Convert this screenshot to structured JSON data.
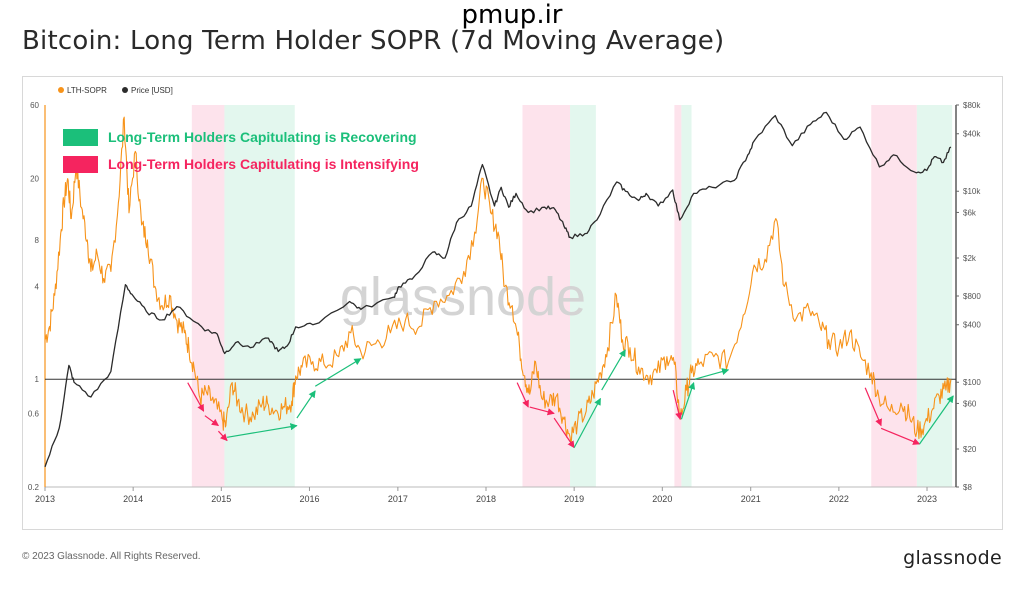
{
  "page": {
    "top_watermark": "pmup.ir",
    "title": "Bitcoin: Long Term Holder SOPR (7d Moving Average)",
    "copyright": "© 2023 Glassnode. All Rights Reserved.",
    "brand_logo": "glassnode",
    "chart_watermark": "glassnode"
  },
  "chart_data": {
    "type": "line",
    "title": "Bitcoin: Long Term Holder SOPR (7d Moving Average)",
    "legend_position": "top-left",
    "grid": false,
    "x_range": [
      "2013-01-01",
      "2023-05-01"
    ],
    "x_ticks": [
      "2013",
      "2014",
      "2015",
      "2016",
      "2017",
      "2018",
      "2019",
      "2020",
      "2021",
      "2022",
      "2023"
    ],
    "y_left": {
      "scale": "log",
      "range": [
        0.2,
        60
      ],
      "ticks": [
        0.2,
        0.6,
        1,
        4,
        8,
        20,
        60
      ]
    },
    "y_right": {
      "scale": "log",
      "range": [
        8,
        80000
      ],
      "ticks": [
        "$8",
        "$20",
        "$60",
        "$100",
        "$400",
        "$800",
        "$2k",
        "$6k",
        "$10k",
        "$40k",
        "$80k"
      ]
    },
    "reference_line": {
      "axis": "left",
      "value": 1,
      "color": "#333333"
    },
    "colors": {
      "sopr": "#f7931a",
      "price": "#2b2b2b",
      "recovering": "#1bbf7a",
      "intensifying": "#f5245f"
    },
    "legend_entries": [
      "LTH-SOPR",
      "Price [USD]"
    ],
    "series": [
      {
        "name": "LTH-SOPR",
        "axis": "left",
        "points": [
          [
            "2013-01-01",
            1.8
          ],
          [
            "2013-01-20",
            2.2
          ],
          [
            "2013-02-10",
            3.5
          ],
          [
            "2013-03-05",
            8
          ],
          [
            "2013-03-20",
            14
          ],
          [
            "2013-04-05",
            20
          ],
          [
            "2013-04-20",
            11
          ],
          [
            "2013-05-10",
            25
          ],
          [
            "2013-06-01",
            13
          ],
          [
            "2013-06-25",
            8
          ],
          [
            "2013-07-10",
            5
          ],
          [
            "2013-08-05",
            6.5
          ],
          [
            "2013-09-01",
            4.5
          ],
          [
            "2013-10-01",
            5
          ],
          [
            "2013-11-01",
            14
          ],
          [
            "2013-11-25",
            50
          ],
          [
            "2013-12-15",
            12
          ],
          [
            "2014-01-10",
            30
          ],
          [
            "2014-02-05",
            10
          ],
          [
            "2014-03-01",
            8
          ],
          [
            "2014-04-01",
            4
          ],
          [
            "2014-05-01",
            3
          ],
          [
            "2014-06-01",
            3.5
          ],
          [
            "2014-07-01",
            2.4
          ],
          [
            "2014-08-01",
            2.0
          ],
          [
            "2014-08-20",
            1.6
          ],
          [
            "2014-09-10",
            1.2
          ],
          [
            "2014-10-05",
            0.75
          ],
          [
            "2014-11-01",
            0.82
          ],
          [
            "2014-12-01",
            0.7
          ],
          [
            "2015-01-05",
            0.55
          ],
          [
            "2015-01-20",
            0.5
          ],
          [
            "2015-02-15",
            0.95
          ],
          [
            "2015-03-10",
            0.72
          ],
          [
            "2015-04-10",
            0.6
          ],
          [
            "2015-05-15",
            0.58
          ],
          [
            "2015-06-20",
            0.7
          ],
          [
            "2015-07-15",
            0.68
          ],
          [
            "2015-08-20",
            0.62
          ],
          [
            "2015-09-20",
            0.66
          ],
          [
            "2015-10-20",
            0.72
          ],
          [
            "2015-11-05",
            1.05
          ],
          [
            "2015-12-01",
            1.2
          ],
          [
            "2016-01-15",
            1.3
          ],
          [
            "2016-03-01",
            1.25
          ],
          [
            "2016-05-01",
            1.4
          ],
          [
            "2016-06-20",
            2.0
          ],
          [
            "2016-08-01",
            1.5
          ],
          [
            "2016-10-01",
            1.7
          ],
          [
            "2016-12-01",
            2.0
          ],
          [
            "2017-02-01",
            2.4
          ],
          [
            "2017-04-01",
            2.2
          ],
          [
            "2017-06-01",
            3.2
          ],
          [
            "2017-08-01",
            3.5
          ],
          [
            "2017-10-01",
            5
          ],
          [
            "2017-11-15",
            9
          ],
          [
            "2017-12-20",
            20
          ],
          [
            "2018-01-20",
            12
          ],
          [
            "2018-02-20",
            9
          ],
          [
            "2018-03-20",
            4
          ],
          [
            "2018-04-20",
            3
          ],
          [
            "2018-05-20",
            1.6
          ],
          [
            "2018-06-10",
            1.05
          ],
          [
            "2018-07-01",
            0.8
          ],
          [
            "2018-07-25",
            1.3
          ],
          [
            "2018-08-20",
            0.75
          ],
          [
            "2018-09-20",
            0.72
          ],
          [
            "2018-10-20",
            0.78
          ],
          [
            "2018-11-20",
            0.55
          ],
          [
            "2018-12-15",
            0.42
          ],
          [
            "2019-01-15",
            0.52
          ],
          [
            "2019-02-20",
            0.62
          ],
          [
            "2019-03-20",
            0.8
          ],
          [
            "2019-04-20",
            1.1
          ],
          [
            "2019-05-20",
            1.6
          ],
          [
            "2019-06-25",
            3.5
          ],
          [
            "2019-07-20",
            1.8
          ],
          [
            "2019-08-20",
            1.6
          ],
          [
            "2019-09-25",
            1.2
          ],
          [
            "2019-11-01",
            1.05
          ],
          [
            "2019-12-10",
            1.1
          ],
          [
            "2020-01-20",
            1.4
          ],
          [
            "2020-02-20",
            1.25
          ],
          [
            "2020-03-15",
            0.55
          ],
          [
            "2020-04-10",
            0.85
          ],
          [
            "2020-05-01",
            1.1
          ],
          [
            "2020-06-01",
            1.25
          ],
          [
            "2020-08-01",
            1.4
          ],
          [
            "2020-10-01",
            1.3
          ],
          [
            "2020-12-01",
            2.6
          ],
          [
            "2021-01-15",
            5.5
          ],
          [
            "2021-03-01",
            6
          ],
          [
            "2021-04-15",
            11
          ],
          [
            "2021-05-20",
            4
          ],
          [
            "2021-07-10",
            2.5
          ],
          [
            "2021-09-01",
            2.8
          ],
          [
            "2021-10-15",
            2.2
          ],
          [
            "2021-11-20",
            1.8
          ],
          [
            "2022-01-01",
            1.6
          ],
          [
            "2022-02-15",
            2.0
          ],
          [
            "2022-04-01",
            1.4
          ],
          [
            "2022-05-15",
            1.1
          ],
          [
            "2022-06-15",
            0.78
          ],
          [
            "2022-08-01",
            0.62
          ],
          [
            "2022-09-15",
            0.7
          ],
          [
            "2022-10-20",
            0.58
          ],
          [
            "2022-11-20",
            0.46
          ],
          [
            "2022-12-20",
            0.5
          ],
          [
            "2023-01-20",
            0.62
          ],
          [
            "2023-02-20",
            0.78
          ],
          [
            "2023-03-20",
            0.85
          ],
          [
            "2023-04-10",
            1.0
          ]
        ]
      },
      {
        "name": "Price [USD]",
        "axis": "right",
        "points": [
          [
            "2013-01-01",
            13
          ],
          [
            "2013-03-01",
            33
          ],
          [
            "2013-04-10",
            150
          ],
          [
            "2013-05-01",
            100
          ],
          [
            "2013-07-10",
            70
          ],
          [
            "2013-10-01",
            130
          ],
          [
            "2013-11-30",
            1050
          ],
          [
            "2014-01-01",
            800
          ],
          [
            "2014-02-25",
            550
          ],
          [
            "2014-05-01",
            450
          ],
          [
            "2014-07-01",
            620
          ],
          [
            "2014-09-20",
            420
          ],
          [
            "2014-11-01",
            350
          ],
          [
            "2014-12-15",
            320
          ],
          [
            "2015-01-15",
            200
          ],
          [
            "2015-03-01",
            260
          ],
          [
            "2015-05-01",
            230
          ],
          [
            "2015-07-15",
            290
          ],
          [
            "2015-08-25",
            210
          ],
          [
            "2015-10-01",
            240
          ],
          [
            "2015-11-05",
            380
          ],
          [
            "2016-01-15",
            400
          ],
          [
            "2016-06-15",
            700
          ],
          [
            "2016-08-01",
            580
          ],
          [
            "2016-12-15",
            780
          ],
          [
            "2017-01-05",
            1000
          ],
          [
            "2017-03-01",
            1200
          ],
          [
            "2017-05-25",
            2300
          ],
          [
            "2017-07-15",
            2000
          ],
          [
            "2017-09-01",
            4700
          ],
          [
            "2017-11-01",
            7000
          ],
          [
            "2017-12-17",
            19000
          ],
          [
            "2018-02-05",
            7000
          ],
          [
            "2018-03-05",
            11000
          ],
          [
            "2018-04-05",
            6800
          ],
          [
            "2018-05-05",
            9500
          ],
          [
            "2018-06-25",
            6000
          ],
          [
            "2018-09-01",
            6800
          ],
          [
            "2018-10-15",
            6400
          ],
          [
            "2018-11-20",
            4300
          ],
          [
            "2018-12-15",
            3300
          ],
          [
            "2019-02-15",
            3600
          ],
          [
            "2019-04-05",
            5000
          ],
          [
            "2019-06-26",
            12500
          ],
          [
            "2019-08-01",
            10000
          ],
          [
            "2019-09-25",
            8000
          ],
          [
            "2019-10-26",
            9500
          ],
          [
            "2019-12-15",
            7000
          ],
          [
            "2020-02-13",
            10300
          ],
          [
            "2020-03-13",
            5000
          ],
          [
            "2020-05-10",
            9500
          ],
          [
            "2020-07-25",
            11000
          ],
          [
            "2020-10-25",
            13000
          ],
          [
            "2020-12-20",
            24000
          ],
          [
            "2021-01-20",
            35000
          ],
          [
            "2021-04-13",
            62000
          ],
          [
            "2021-06-22",
            30000
          ],
          [
            "2021-09-05",
            50000
          ],
          [
            "2021-11-10",
            67000
          ],
          [
            "2022-01-22",
            35000
          ],
          [
            "2022-03-30",
            47000
          ],
          [
            "2022-06-18",
            18000
          ],
          [
            "2022-08-15",
            24000
          ],
          [
            "2022-11-09",
            16000
          ],
          [
            "2022-12-31",
            16500
          ],
          [
            "2023-01-31",
            23000
          ],
          [
            "2023-03-10",
            20000
          ],
          [
            "2023-04-10",
            29000
          ]
        ]
      }
    ],
    "bands": [
      {
        "type": "intensifying",
        "from": "2014-09-01",
        "to": "2015-01-14"
      },
      {
        "type": "recovering",
        "from": "2015-01-14",
        "to": "2015-11-01"
      },
      {
        "type": "intensifying",
        "from": "2018-06-01",
        "to": "2018-12-15"
      },
      {
        "type": "recovering",
        "from": "2018-12-15",
        "to": "2019-04-01"
      },
      {
        "type": "intensifying",
        "from": "2020-02-20",
        "to": "2020-03-20"
      },
      {
        "type": "recovering",
        "from": "2020-03-20",
        "to": "2020-05-01"
      },
      {
        "type": "intensifying",
        "from": "2022-05-15",
        "to": "2022-11-20"
      },
      {
        "type": "recovering",
        "from": "2022-11-20",
        "to": "2023-04-15"
      }
    ],
    "annotations": [
      {
        "label": "Long-Term Holders Capitulating is Recovering",
        "color": "#1bbf7a"
      },
      {
        "label": "Long-Term Holders Capitulating is Intensifying",
        "color": "#f5245f"
      }
    ],
    "arrows": [
      {
        "type": "intensifying",
        "from": [
          "2014-08-15",
          0.95
        ],
        "to": [
          "2014-10-20",
          0.62
        ]
      },
      {
        "type": "intensifying",
        "from": [
          "2014-10-25",
          0.58
        ],
        "to": [
          "2014-12-20",
          0.5
        ]
      },
      {
        "type": "intensifying",
        "from": [
          "2014-12-20",
          0.46
        ],
        "to": [
          "2015-01-25",
          0.4
        ]
      },
      {
        "type": "recovering",
        "from": [
          "2015-01-25",
          0.42
        ],
        "to": [
          "2015-11-10",
          0.5
        ]
      },
      {
        "type": "recovering",
        "from": [
          "2015-11-10",
          0.56
        ],
        "to": [
          "2016-01-25",
          0.84
        ]
      },
      {
        "type": "recovering",
        "from": [
          "2016-01-25",
          0.9
        ],
        "to": [
          "2016-08-01",
          1.36
        ]
      },
      {
        "type": "intensifying",
        "from": [
          "2018-05-10",
          0.95
        ],
        "to": [
          "2018-06-25",
          0.66
        ]
      },
      {
        "type": "intensifying",
        "from": [
          "2018-07-01",
          0.66
        ],
        "to": [
          "2018-10-10",
          0.6
        ]
      },
      {
        "type": "intensifying",
        "from": [
          "2018-10-10",
          0.56
        ],
        "to": [
          "2019-01-01",
          0.36
        ]
      },
      {
        "type": "recovering",
        "from": [
          "2019-01-01",
          0.36
        ],
        "to": [
          "2019-04-20",
          0.75
        ]
      },
      {
        "type": "recovering",
        "from": [
          "2019-04-25",
          0.85
        ],
        "to": [
          "2019-08-01",
          1.55
        ]
      },
      {
        "type": "intensifying",
        "from": [
          "2020-02-15",
          0.85
        ],
        "to": [
          "2020-03-15",
          0.55
        ]
      },
      {
        "type": "recovering",
        "from": [
          "2020-03-20",
          0.55
        ],
        "to": [
          "2020-05-10",
          0.95
        ]
      },
      {
        "type": "recovering",
        "from": [
          "2020-05-15",
          1.0
        ],
        "to": [
          "2020-10-01",
          1.15
        ]
      },
      {
        "type": "intensifying",
        "from": [
          "2022-04-20",
          0.88
        ],
        "to": [
          "2022-06-25",
          0.5
        ]
      },
      {
        "type": "intensifying",
        "from": [
          "2022-06-25",
          0.48
        ],
        "to": [
          "2022-12-01",
          0.38
        ]
      },
      {
        "type": "recovering",
        "from": [
          "2022-12-01",
          0.38
        ],
        "to": [
          "2023-04-20",
          0.78
        ]
      }
    ]
  }
}
